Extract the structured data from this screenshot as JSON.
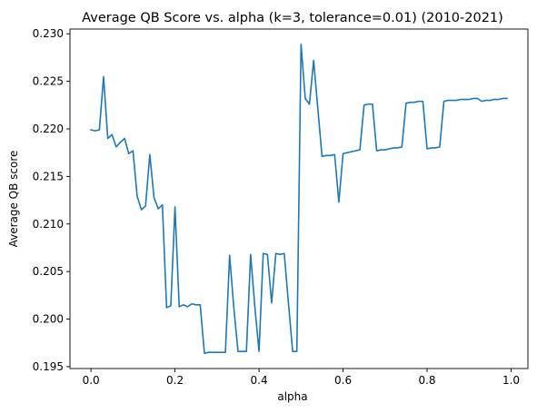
{
  "chart_data": {
    "type": "line",
    "title": "Average QB Score vs. alpha (k=3, tolerance=0.01) (2010-2021)",
    "xlabel": "alpha",
    "ylabel": "Average QB score",
    "xlim": [
      -0.05,
      1.04
    ],
    "ylim": [
      0.1948,
      0.2305
    ],
    "grid": false,
    "x_ticks": [
      0.0,
      0.2,
      0.4,
      0.6,
      0.8,
      1.0
    ],
    "x_tick_labels": [
      "0.0",
      "0.2",
      "0.4",
      "0.6",
      "0.8",
      "1.0"
    ],
    "y_ticks": [
      0.195,
      0.2,
      0.205,
      0.21,
      0.215,
      0.22,
      0.225,
      0.23
    ],
    "y_tick_labels": [
      "0.195",
      "0.200",
      "0.205",
      "0.210",
      "0.215",
      "0.220",
      "0.225",
      "0.230"
    ],
    "series": [
      {
        "color": "#1f77b4",
        "x": [
          0.0,
          0.01,
          0.02,
          0.03,
          0.04,
          0.05,
          0.06,
          0.07,
          0.08,
          0.09,
          0.1,
          0.11,
          0.12,
          0.13,
          0.14,
          0.15,
          0.16,
          0.17,
          0.18,
          0.19,
          0.2,
          0.21,
          0.22,
          0.23,
          0.24,
          0.25,
          0.26,
          0.27,
          0.28,
          0.29,
          0.3,
          0.31,
          0.32,
          0.33,
          0.34,
          0.35,
          0.36,
          0.37,
          0.38,
          0.39,
          0.4,
          0.41,
          0.42,
          0.43,
          0.44,
          0.45,
          0.46,
          0.47,
          0.48,
          0.49,
          0.5,
          0.51,
          0.52,
          0.53,
          0.54,
          0.55,
          0.56,
          0.57,
          0.58,
          0.59,
          0.6,
          0.61,
          0.62,
          0.63,
          0.64,
          0.65,
          0.66,
          0.67,
          0.68,
          0.69,
          0.7,
          0.71,
          0.72,
          0.73,
          0.74,
          0.75,
          0.76,
          0.77,
          0.78,
          0.79,
          0.8,
          0.81,
          0.82,
          0.83,
          0.84,
          0.85,
          0.86,
          0.87,
          0.88,
          0.89,
          0.9,
          0.91,
          0.92,
          0.93,
          0.94,
          0.95,
          0.96,
          0.97,
          0.98,
          0.99
        ],
        "values": [
          0.2199,
          0.2198,
          0.2199,
          0.2255,
          0.219,
          0.2194,
          0.2181,
          0.2186,
          0.219,
          0.2174,
          0.2177,
          0.2129,
          0.2115,
          0.2119,
          0.2173,
          0.2128,
          0.2116,
          0.212,
          0.2012,
          0.2014,
          0.2118,
          0.2013,
          0.2015,
          0.2013,
          0.2016,
          0.2015,
          0.2015,
          0.1964,
          0.1965,
          0.1965,
          0.1965,
          0.1965,
          0.1965,
          0.2067,
          0.2012,
          0.1966,
          0.1966,
          0.1966,
          0.2068,
          0.2013,
          0.1966,
          0.2069,
          0.2068,
          0.2017,
          0.2069,
          0.2068,
          0.2069,
          0.2017,
          0.1966,
          0.1966,
          0.2289,
          0.2232,
          0.2226,
          0.2272,
          0.2221,
          0.2171,
          0.2172,
          0.2172,
          0.2173,
          0.2123,
          0.2174,
          0.2175,
          0.2176,
          0.2177,
          0.2178,
          0.2225,
          0.2226,
          0.2226,
          0.2177,
          0.2178,
          0.2178,
          0.2179,
          0.218,
          0.218,
          0.2181,
          0.2227,
          0.2228,
          0.2228,
          0.2229,
          0.2229,
          0.2179,
          0.218,
          0.218,
          0.2181,
          0.2229,
          0.223,
          0.223,
          0.223,
          0.2231,
          0.2231,
          0.2231,
          0.2232,
          0.2232,
          0.2229,
          0.223,
          0.223,
          0.2231,
          0.2231,
          0.2232,
          0.2232
        ]
      }
    ]
  }
}
